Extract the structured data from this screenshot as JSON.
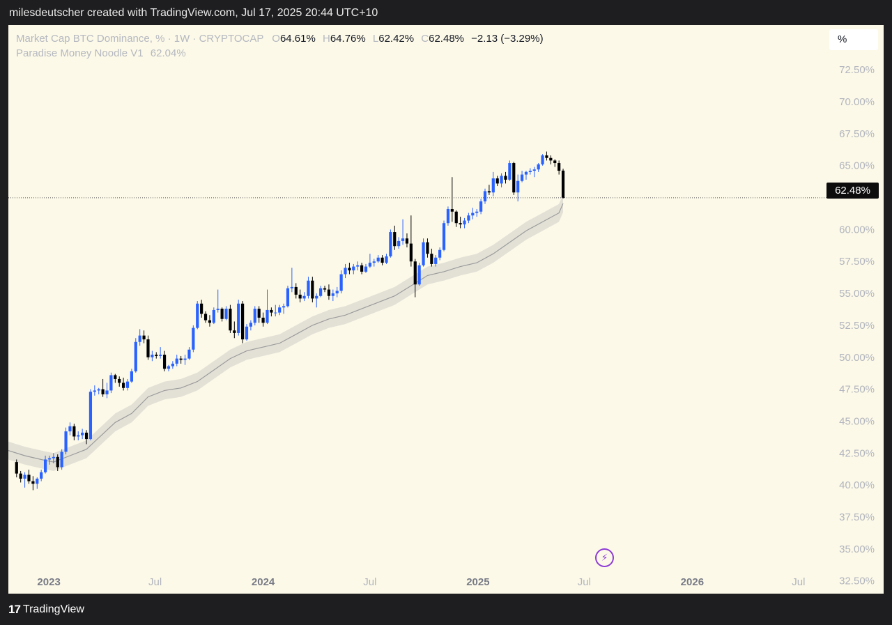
{
  "header": {
    "caption": "milesdeutscher created with TradingView.com, Jul 17, 2025 20:44 UTC+10"
  },
  "legend": {
    "symbol": "Market Cap BTC Dominance, % · 1W · CRYPTOCAP",
    "o_label": "O",
    "o_value": "64.61%",
    "h_label": "H",
    "h_value": "64.76%",
    "l_label": "L",
    "l_value": "62.42%",
    "c_label": "C",
    "c_value": "62.48%",
    "change": "−2.13 (−3.29%)",
    "indicator_name": "Paradise Money Noodle V1",
    "indicator_value": "62.04%"
  },
  "scale_unit": "%",
  "last_price_label": "62.48%",
  "footer": {
    "brand": "TradingView"
  },
  "colors": {
    "up": "#2962ff",
    "down": "#000000",
    "background": "#fcf9e8",
    "band": "#e3e1d6",
    "ma": "#9b9b9b",
    "accent": "#8d3bd6"
  },
  "icons": {
    "alert": "lightning-bolt-icon",
    "logo": "tradingview-logo-icon"
  },
  "chart_data": {
    "type": "candlestick",
    "title": "Market Cap BTC Dominance, % · 1W · CRYPTOCAP",
    "interval": "1W",
    "y_ticks": [
      "72.50%",
      "70.00%",
      "67.50%",
      "65.00%",
      "60.00%",
      "57.50%",
      "55.00%",
      "52.50%",
      "50.00%",
      "47.50%",
      "45.00%",
      "42.50%",
      "40.00%",
      "37.50%",
      "35.00%",
      "32.50%"
    ],
    "x_ticks": [
      {
        "label": "2023",
        "date": "2023-01-01",
        "year": true
      },
      {
        "label": "Jul",
        "date": "2023-07-01",
        "year": false
      },
      {
        "label": "2024",
        "date": "2024-01-01",
        "year": true
      },
      {
        "label": "Jul",
        "date": "2024-07-01",
        "year": false
      },
      {
        "label": "2025",
        "date": "2025-01-01",
        "year": true
      },
      {
        "label": "Jul",
        "date": "2025-07-01",
        "year": false
      },
      {
        "label": "2026",
        "date": "2026-01-01",
        "year": true
      },
      {
        "label": "Jul",
        "date": "2026-07-01",
        "year": false
      }
    ],
    "ylim": [
      31.5,
      76
    ],
    "xlim": [
      "2022-10-24",
      "2026-08-07"
    ],
    "last_close": 62.48,
    "price_series": [
      [
        "2022-11-07",
        41.8,
        42,
        40.6,
        40.9
      ],
      [
        "2022-11-14",
        40.9,
        41.1,
        40.2,
        40.5
      ],
      [
        "2022-11-21",
        40.5,
        41,
        39.8,
        40.8
      ],
      [
        "2022-11-28",
        40.8,
        41.2,
        40.1,
        40.3
      ],
      [
        "2022-12-05",
        40.3,
        40.7,
        39.6,
        40.1
      ],
      [
        "2022-12-12",
        40.1,
        40.6,
        39.7,
        40.5
      ],
      [
        "2022-12-19",
        40.5,
        41.2,
        40.3,
        41
      ],
      [
        "2022-12-26",
        41,
        42.3,
        40.9,
        42
      ],
      [
        "2023-01-02",
        42,
        42.3,
        41.6,
        42.1
      ],
      [
        "2023-01-09",
        42.1,
        42.5,
        41.7,
        42.2
      ],
      [
        "2023-01-16",
        42.2,
        42.4,
        41.1,
        41.4
      ],
      [
        "2023-01-23",
        41.4,
        42.8,
        41.2,
        42.6
      ],
      [
        "2023-01-30",
        42.6,
        44.5,
        42.4,
        44.2
      ],
      [
        "2023-02-06",
        44.2,
        44.9,
        43.9,
        44.6
      ],
      [
        "2023-02-13",
        44.6,
        44.8,
        43.5,
        43.8
      ],
      [
        "2023-02-20",
        43.8,
        44.2,
        43.5,
        43.9
      ],
      [
        "2023-02-27",
        43.9,
        44.4,
        43.6,
        44.1
      ],
      [
        "2023-03-06",
        44.1,
        44.3,
        43.2,
        43.6
      ],
      [
        "2023-03-13",
        43.6,
        47.5,
        43.5,
        47.3
      ],
      [
        "2023-03-20",
        47.3,
        47.8,
        47,
        47.4
      ],
      [
        "2023-03-27",
        47.4,
        47.6,
        47.1,
        47.5
      ],
      [
        "2023-04-03",
        47.5,
        48.3,
        46.9,
        47.1
      ],
      [
        "2023-04-10",
        47.1,
        48,
        46.8,
        47.4
      ],
      [
        "2023-04-17",
        47.4,
        48.8,
        47.2,
        48.6
      ],
      [
        "2023-04-24",
        48.6,
        48.7,
        48,
        48.3
      ],
      [
        "2023-05-01",
        48.3,
        48.5,
        47.7,
        48
      ],
      [
        "2023-05-08",
        48,
        48.4,
        47.4,
        47.6
      ],
      [
        "2023-05-15",
        47.6,
        48.3,
        47.4,
        48.1
      ],
      [
        "2023-05-22",
        48.1,
        49.1,
        48,
        48.9
      ],
      [
        "2023-05-29",
        48.9,
        51.5,
        48.8,
        51.2
      ],
      [
        "2023-06-05",
        51.2,
        52.2,
        50.9,
        51.7
      ],
      [
        "2023-06-12",
        51.7,
        52.1,
        51.1,
        51.4
      ],
      [
        "2023-06-19",
        51.4,
        51.7,
        49.8,
        50
      ],
      [
        "2023-06-26",
        50,
        50.5,
        49.7,
        50.2
      ],
      [
        "2023-07-03",
        50.2,
        50.4,
        49.9,
        50.1
      ],
      [
        "2023-07-10",
        50.1,
        50.8,
        49.9,
        50.2
      ],
      [
        "2023-07-17",
        50.2,
        50.5,
        48.9,
        49.1
      ],
      [
        "2023-07-24",
        49.1,
        49.4,
        48.9,
        49.3
      ],
      [
        "2023-07-31",
        49.3,
        49.7,
        49.1,
        49.5
      ],
      [
        "2023-08-07",
        49.5,
        50.2,
        49.3,
        49.9
      ],
      [
        "2023-08-14",
        49.9,
        50.1,
        49.5,
        49.8
      ],
      [
        "2023-08-21",
        49.8,
        50.2,
        49.4,
        49.9
      ],
      [
        "2023-08-28",
        49.9,
        50.8,
        49.8,
        50.6
      ],
      [
        "2023-09-04",
        50.6,
        52.5,
        50.4,
        52.3
      ],
      [
        "2023-09-11",
        52.3,
        54.4,
        52.2,
        54.2
      ],
      [
        "2023-09-18",
        54.2,
        54.5,
        53.1,
        53.4
      ],
      [
        "2023-09-25",
        53.4,
        53.6,
        52.7,
        52.9
      ],
      [
        "2023-10-02",
        52.9,
        53.3,
        52.4,
        52.7
      ],
      [
        "2023-10-09",
        52.7,
        53.9,
        52.6,
        53.7
      ],
      [
        "2023-10-16",
        53.7,
        55.3,
        53.5,
        53.8
      ],
      [
        "2023-10-23",
        53.8,
        53.9,
        52.8,
        53
      ],
      [
        "2023-10-30",
        53,
        54,
        52.9,
        53.8
      ],
      [
        "2023-11-06",
        53.8,
        54.1,
        51.9,
        52.1
      ],
      [
        "2023-11-13",
        52.1,
        52.8,
        51.5,
        51.9
      ],
      [
        "2023-11-20",
        51.9,
        54.5,
        51.7,
        54.2
      ],
      [
        "2023-11-27",
        54.2,
        54.4,
        51.1,
        51.4
      ],
      [
        "2023-12-04",
        51.4,
        52.6,
        51.3,
        52.4
      ],
      [
        "2023-12-11",
        52.4,
        52.9,
        52.1,
        52.7
      ],
      [
        "2023-12-18",
        52.7,
        54,
        52.5,
        53.8
      ],
      [
        "2023-12-25",
        53.8,
        54,
        52.7,
        53.1
      ],
      [
        "2024-01-01",
        53.1,
        53.5,
        52.4,
        52.7
      ],
      [
        "2024-01-08",
        52.7,
        55.3,
        52.6,
        53.7
      ],
      [
        "2024-01-15",
        53.7,
        53.9,
        53.2,
        53.5
      ],
      [
        "2024-01-22",
        53.5,
        54.1,
        53.2,
        53.5
      ],
      [
        "2024-01-29",
        53.5,
        54.1,
        53.3,
        53.9
      ],
      [
        "2024-02-05",
        53.9,
        54.2,
        53.4,
        54
      ],
      [
        "2024-02-12",
        54,
        55.6,
        53.9,
        55.4
      ],
      [
        "2024-02-19",
        55.4,
        57,
        55.1,
        55.5
      ],
      [
        "2024-02-26",
        55.5,
        55.8,
        54.6,
        54.9
      ],
      [
        "2024-03-04",
        54.9,
        55.3,
        54.3,
        54.6
      ],
      [
        "2024-03-11",
        54.6,
        55.1,
        54.4,
        54.8
      ],
      [
        "2024-03-18",
        54.8,
        56.3,
        54.6,
        56
      ],
      [
        "2024-03-25",
        56,
        56.3,
        54.3,
        54.6
      ],
      [
        "2024-04-01",
        54.6,
        55,
        53.9,
        54.8
      ],
      [
        "2024-04-08",
        54.8,
        55.6,
        54.7,
        55.4
      ],
      [
        "2024-04-15",
        55.4,
        55.6,
        55.1,
        55.3
      ],
      [
        "2024-04-22",
        55.3,
        55.7,
        54.5,
        54.8
      ],
      [
        "2024-04-29",
        54.8,
        55.3,
        54.4,
        55
      ],
      [
        "2024-05-06",
        55,
        55.5,
        54.7,
        55.2
      ],
      [
        "2024-05-13",
        55.2,
        56.8,
        55,
        56.5
      ],
      [
        "2024-05-20",
        56.5,
        57.3,
        56.2,
        57
      ],
      [
        "2024-05-27",
        57,
        57.4,
        56.5,
        56.8
      ],
      [
        "2024-06-03",
        56.8,
        57.3,
        56.5,
        57.1
      ],
      [
        "2024-06-10",
        57.1,
        57.5,
        56.8,
        57.2
      ],
      [
        "2024-06-17",
        57.2,
        57.4,
        56.5,
        56.7
      ],
      [
        "2024-06-24",
        56.7,
        57.3,
        56.6,
        57.1
      ],
      [
        "2024-07-01",
        57.1,
        58.1,
        57,
        57.4
      ],
      [
        "2024-07-08",
        57.4,
        57.7,
        57.1,
        57.5
      ],
      [
        "2024-07-15",
        57.5,
        58,
        57.4,
        57.8
      ],
      [
        "2024-07-22",
        57.8,
        58,
        57.2,
        57.4
      ],
      [
        "2024-07-29",
        57.4,
        58.1,
        57.3,
        57.9
      ],
      [
        "2024-08-05",
        57.9,
        60,
        57.8,
        59.8
      ],
      [
        "2024-08-12",
        59.8,
        60.3,
        58.4,
        58.7
      ],
      [
        "2024-08-19",
        58.7,
        59.4,
        58.5,
        59.1
      ],
      [
        "2024-08-26",
        59.1,
        60.8,
        58.8,
        59.3
      ],
      [
        "2024-09-02",
        59.3,
        59.7,
        58.6,
        58.9
      ],
      [
        "2024-09-09",
        58.9,
        61.1,
        57.1,
        57.5
      ],
      [
        "2024-09-16",
        57.5,
        57.7,
        54.7,
        55.7
      ],
      [
        "2024-09-23",
        55.7,
        57.4,
        55.6,
        57.2
      ],
      [
        "2024-09-30",
        57.2,
        59.3,
        57.1,
        59
      ],
      [
        "2024-10-07",
        59,
        59.3,
        57.8,
        58.1
      ],
      [
        "2024-10-14",
        58.1,
        58.5,
        57.1,
        57.3
      ],
      [
        "2024-10-21",
        57.3,
        58,
        57.1,
        57.8
      ],
      [
        "2024-10-28",
        57.8,
        58.6,
        57.6,
        58.4
      ],
      [
        "2024-11-04",
        58.4,
        60.7,
        58.3,
        60.5
      ],
      [
        "2024-11-11",
        60.5,
        61.8,
        60.3,
        61.6
      ],
      [
        "2024-11-18",
        61.6,
        64.1,
        60.6,
        61.4
      ],
      [
        "2024-11-25",
        61.4,
        61.5,
        60.2,
        60.5
      ],
      [
        "2024-12-02",
        60.5,
        61,
        60.1,
        60.4
      ],
      [
        "2024-12-09",
        60.4,
        60.9,
        60.1,
        60.7
      ],
      [
        "2024-12-16",
        60.7,
        61.3,
        60.5,
        61.1
      ],
      [
        "2024-12-23",
        61.1,
        61.7,
        60.8,
        61.3
      ],
      [
        "2024-12-30",
        61.3,
        61.6,
        61,
        61.4
      ],
      [
        "2025-01-06",
        61.4,
        62.4,
        61.2,
        62.2
      ],
      [
        "2025-01-13",
        62.2,
        63.2,
        62,
        63
      ],
      [
        "2025-01-20",
        63,
        63.5,
        62.7,
        62.9
      ],
      [
        "2025-01-27",
        62.9,
        64.5,
        62.6,
        64
      ],
      [
        "2025-02-03",
        64,
        64.2,
        63.4,
        63.6
      ],
      [
        "2025-02-10",
        63.6,
        64.4,
        63.3,
        64.2
      ],
      [
        "2025-02-17",
        64.2,
        64.5,
        63.6,
        63.9
      ],
      [
        "2025-02-24",
        63.9,
        65.4,
        63.8,
        65.2
      ],
      [
        "2025-03-03",
        65.2,
        65.3,
        62.7,
        62.9
      ],
      [
        "2025-03-10",
        62.9,
        64.3,
        62.2,
        63.8
      ],
      [
        "2025-03-17",
        63.8,
        64.6,
        63.7,
        64.3
      ],
      [
        "2025-03-24",
        64.3,
        64.6,
        63.9,
        64.5
      ],
      [
        "2025-03-31",
        64.5,
        64.8,
        64.3,
        64.6
      ],
      [
        "2025-04-07",
        64.6,
        64.9,
        64.1,
        64.7
      ],
      [
        "2025-04-14",
        64.7,
        65.2,
        64.5,
        65.1
      ],
      [
        "2025-04-21",
        65.1,
        65.9,
        65,
        65.8
      ],
      [
        "2025-04-28",
        65.8,
        66.1,
        65.4,
        65.6
      ],
      [
        "2025-05-05",
        65.6,
        65.8,
        65.1,
        65.4
      ],
      [
        "2025-05-12",
        65.4,
        65.5,
        64.9,
        65.2
      ],
      [
        "2025-05-19",
        65.2,
        65.4,
        64.3,
        64.6
      ],
      [
        "2025-05-26",
        64.61,
        64.76,
        62.42,
        62.48
      ]
    ],
    "indicator": {
      "name": "Paradise Money Noodle V1",
      "last_value": 62.04,
      "series": [
        [
          "2022-10-24",
          42.7
        ],
        [
          "2022-11-21",
          42.3
        ],
        [
          "2022-12-19",
          42.0
        ],
        [
          "2023-01-09",
          41.8
        ],
        [
          "2023-02-06",
          42.3
        ],
        [
          "2023-03-06",
          42.8
        ],
        [
          "2023-03-27",
          43.7
        ],
        [
          "2023-04-24",
          44.9
        ],
        [
          "2023-05-22",
          45.6
        ],
        [
          "2023-06-19",
          46.9
        ],
        [
          "2023-07-17",
          47.4
        ],
        [
          "2023-08-14",
          47.6
        ],
        [
          "2023-09-11",
          48.1
        ],
        [
          "2023-10-09",
          49.0
        ],
        [
          "2023-11-06",
          49.9
        ],
        [
          "2023-12-04",
          50.5
        ],
        [
          "2024-01-01",
          50.8
        ],
        [
          "2024-01-29",
          51.1
        ],
        [
          "2024-02-26",
          51.8
        ],
        [
          "2024-03-25",
          52.5
        ],
        [
          "2024-04-22",
          53.0
        ],
        [
          "2024-05-20",
          53.3
        ],
        [
          "2024-06-17",
          53.8
        ],
        [
          "2024-07-15",
          54.3
        ],
        [
          "2024-08-12",
          54.8
        ],
        [
          "2024-09-09",
          55.6
        ],
        [
          "2024-10-07",
          56.4
        ],
        [
          "2024-11-04",
          56.7
        ],
        [
          "2024-12-02",
          57.1
        ],
        [
          "2024-12-30",
          57.4
        ],
        [
          "2025-01-27",
          58.1
        ],
        [
          "2025-02-24",
          59.0
        ],
        [
          "2025-03-24",
          59.9
        ],
        [
          "2025-04-21",
          60.6
        ],
        [
          "2025-05-19",
          61.3
        ],
        [
          "2025-05-26",
          62.04
        ]
      ],
      "band_halfwidth": 0.7
    }
  }
}
